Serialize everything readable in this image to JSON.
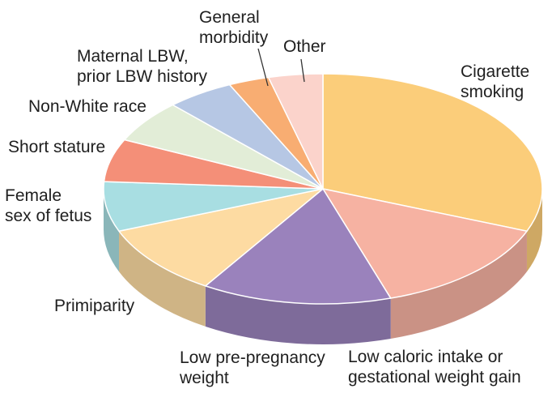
{
  "chart_data": {
    "type": "pie",
    "title": "",
    "slices": [
      {
        "label": [
          "Cigarette",
          "smoking"
        ],
        "value": 31,
        "color": "#fbcd7a"
      },
      {
        "label": [
          "Low caloric intake or",
          "gestational weight gain"
        ],
        "value": 14,
        "color": "#f6b2a2"
      },
      {
        "label": [
          "Low pre-pregnancy",
          "weight"
        ],
        "value": 14,
        "color": "#9a82bc"
      },
      {
        "label": [
          "Primiparity"
        ],
        "value": 10,
        "color": "#fddba2"
      },
      {
        "label": [
          "Female",
          "sex of fetus"
        ],
        "value": 7,
        "color": "#a8dee2"
      },
      {
        "label": [
          "Short stature"
        ],
        "value": 6,
        "color": "#f48f78"
      },
      {
        "label": [
          "Non-White race"
        ],
        "value": 6,
        "color": "#e2edd7"
      },
      {
        "label": [
          "Maternal LBW,",
          "prior LBW history"
        ],
        "value": 5,
        "color": "#b6c7e4"
      },
      {
        "label": [
          "General",
          "morbidity"
        ],
        "value": 3,
        "color": "#f8ad72"
      },
      {
        "label": [
          "Other"
        ],
        "value": 4,
        "color": "#fbd3cb"
      }
    ]
  }
}
